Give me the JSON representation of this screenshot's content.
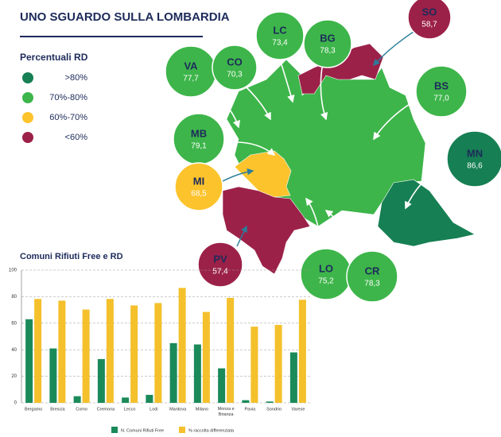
{
  "title": "UNO SGUARDO SULLA LOMBARDIA",
  "legend": {
    "title": "Percentuali RD",
    "items": [
      {
        "label": ">80%",
        "color": "#167f53"
      },
      {
        "label": "70%-80%",
        "color": "#3db54a"
      },
      {
        "label": "60%-70%",
        "color": "#fcc32c"
      },
      {
        "label": "<60%",
        "color": "#9c2149"
      }
    ]
  },
  "provinces": [
    {
      "code": "LC",
      "value": "73,4",
      "color": "#3db54a"
    },
    {
      "code": "BG",
      "value": "78,3",
      "color": "#3db54a"
    },
    {
      "code": "SO",
      "value": "58,7",
      "color": "#9c2149"
    },
    {
      "code": "VA",
      "value": "77,7",
      "color": "#3db54a"
    },
    {
      "code": "CO",
      "value": "70,3",
      "color": "#3db54a"
    },
    {
      "code": "BS",
      "value": "77,0",
      "color": "#3db54a"
    },
    {
      "code": "MB",
      "value": "79,1",
      "color": "#3db54a"
    },
    {
      "code": "MN",
      "value": "86,6",
      "color": "#167f53"
    },
    {
      "code": "MI",
      "value": "68,5",
      "color": "#fcc32c"
    },
    {
      "code": "PV",
      "value": "57,4",
      "color": "#9c2149"
    },
    {
      "code": "LO",
      "value": "75,2",
      "color": "#3db54a"
    },
    {
      "code": "CR",
      "value": "78,3",
      "color": "#3db54a"
    }
  ],
  "chart_data": {
    "type": "bar",
    "title": "Comuni Rifiuti Free  e  RD",
    "categories": [
      "Bergamo",
      "Brescia",
      "Como",
      "Cremona",
      "Lecco",
      "Lodi",
      "Mantova",
      "Milano",
      "Monza e Brianza",
      "Pavia",
      "Sondrio",
      "Varese"
    ],
    "series": [
      {
        "name": "N. Comuni Rifiuti Free",
        "color": "#1b8a5a",
        "values": [
          63,
          41,
          5,
          33,
          4,
          6,
          45,
          44,
          26,
          2,
          1,
          38
        ]
      },
      {
        "name": "% raccolta differenziata",
        "color": "#f4c02b",
        "values": [
          78.3,
          77.0,
          70.3,
          78.3,
          73.4,
          75.2,
          86.6,
          68.5,
          79.1,
          57.4,
          58.7,
          77.7
        ]
      }
    ],
    "ylim": [
      0,
      100
    ],
    "yticks": [
      0,
      20,
      40,
      60,
      80,
      100
    ],
    "grid": true
  }
}
